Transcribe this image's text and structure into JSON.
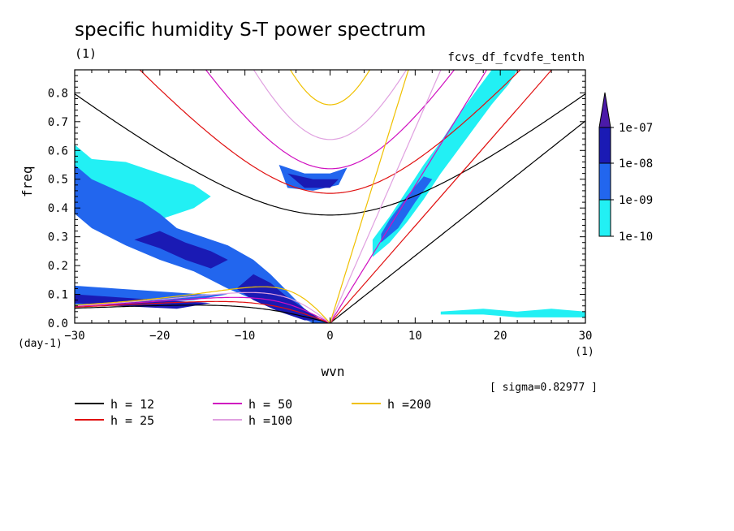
{
  "chart_data": {
    "type": "heatmap",
    "title": "specific humidity S-T power spectrum",
    "experiment": "fcvs_df_fcvdfe_tenth",
    "units_label": "(1)",
    "xlabel": "wvn",
    "ylabel": "freq",
    "x_unit": "(1)",
    "y_unit": "(day-1)",
    "xlim": [
      -30,
      30
    ],
    "ylim": [
      0,
      0.88
    ],
    "x_ticks": [
      -30,
      -20,
      -10,
      0,
      10,
      20,
      30
    ],
    "y_ticks": [
      0.0,
      0.1,
      0.2,
      0.3,
      0.4,
      0.5,
      0.6,
      0.7,
      0.8
    ],
    "annotation": "[ sigma=0.82977 ]",
    "colorbar": {
      "labels": [
        "1e-07",
        "1e-08",
        "1e-09",
        "1e-10"
      ],
      "colors": [
        "#4b1aa8",
        "#1a1ab4",
        "#2266ee",
        "#22f0f4"
      ]
    },
    "dispersion_curves": [
      {
        "label": "h = 12",
        "h": 12,
        "color": "#000000"
      },
      {
        "label": "h = 25",
        "h": 25,
        "color": "#e01010"
      },
      {
        "label": "h = 50",
        "h": 50,
        "color": "#d010c0"
      },
      {
        "label": "h =100",
        "h": 100,
        "color": "#e0a0e0"
      },
      {
        "label": "h =200",
        "h": 200,
        "color": "#f0c000"
      }
    ],
    "power_regions": [
      {
        "level": "1e-10",
        "points": [
          [
            -30,
            0.62
          ],
          [
            -28,
            0.57
          ],
          [
            -24,
            0.56
          ],
          [
            -21,
            0.53
          ],
          [
            -18,
            0.5
          ],
          [
            -16,
            0.48
          ],
          [
            -14,
            0.44
          ],
          [
            -16,
            0.4
          ],
          [
            -20,
            0.36
          ],
          [
            -24,
            0.37
          ],
          [
            -28,
            0.39
          ],
          [
            -30,
            0.42
          ]
        ]
      },
      {
        "level": "1e-09",
        "points": [
          [
            -30,
            0.55
          ],
          [
            -28,
            0.5
          ],
          [
            -25,
            0.46
          ],
          [
            -22,
            0.42
          ],
          [
            -20,
            0.38
          ],
          [
            -18,
            0.33
          ],
          [
            -15,
            0.3
          ],
          [
            -12,
            0.27
          ],
          [
            -9,
            0.22
          ],
          [
            -7,
            0.17
          ],
          [
            -5,
            0.11
          ],
          [
            -3,
            0.05
          ],
          [
            -1,
            0.01
          ],
          [
            0,
            0.0
          ],
          [
            -2,
            0.0
          ],
          [
            -5,
            0.04
          ],
          [
            -8,
            0.07
          ],
          [
            -12,
            0.12
          ],
          [
            -16,
            0.18
          ],
          [
            -20,
            0.22
          ],
          [
            -24,
            0.27
          ],
          [
            -28,
            0.33
          ],
          [
            -30,
            0.38
          ]
        ]
      },
      {
        "level": "1e-09",
        "points": [
          [
            -30,
            0.13
          ],
          [
            -25,
            0.12
          ],
          [
            -20,
            0.11
          ],
          [
            -15,
            0.1
          ],
          [
            -12,
            0.1
          ],
          [
            -16,
            0.08
          ],
          [
            -22,
            0.07
          ],
          [
            -28,
            0.07
          ],
          [
            -30,
            0.06
          ]
        ]
      },
      {
        "level": "1e-08",
        "points": [
          [
            -30,
            0.1
          ],
          [
            -25,
            0.09
          ],
          [
            -20,
            0.08
          ],
          [
            -14,
            0.07
          ],
          [
            -18,
            0.05
          ],
          [
            -25,
            0.06
          ],
          [
            -30,
            0.07
          ]
        ]
      },
      {
        "level": "1e-08",
        "points": [
          [
            -9,
            0.17
          ],
          [
            -7,
            0.14
          ],
          [
            -5,
            0.09
          ],
          [
            -3,
            0.05
          ],
          [
            -1,
            0.01
          ],
          [
            -3,
            0.01
          ],
          [
            -6,
            0.04
          ],
          [
            -9,
            0.08
          ],
          [
            -11,
            0.12
          ]
        ]
      },
      {
        "level": "1e-08",
        "points": [
          [
            -20,
            0.32
          ],
          [
            -17,
            0.28
          ],
          [
            -14,
            0.25
          ],
          [
            -12,
            0.22
          ],
          [
            -14,
            0.19
          ],
          [
            -17,
            0.22
          ],
          [
            -20,
            0.26
          ],
          [
            -23,
            0.29
          ]
        ]
      },
      {
        "level": "1e-09",
        "points": [
          [
            -6,
            0.55
          ],
          [
            -3,
            0.52
          ],
          [
            0,
            0.52
          ],
          [
            2,
            0.54
          ],
          [
            1,
            0.48
          ],
          [
            -2,
            0.46
          ],
          [
            -5,
            0.47
          ]
        ]
      },
      {
        "level": "1e-08",
        "points": [
          [
            -5,
            0.52
          ],
          [
            -2,
            0.5
          ],
          [
            1,
            0.5
          ],
          [
            0,
            0.47
          ],
          [
            -3,
            0.47
          ]
        ]
      },
      {
        "level": "1e-10",
        "points": [
          [
            5,
            0.23
          ],
          [
            7,
            0.28
          ],
          [
            9,
            0.35
          ],
          [
            11,
            0.43
          ],
          [
            13,
            0.52
          ],
          [
            15,
            0.6
          ],
          [
            17,
            0.68
          ],
          [
            19,
            0.76
          ],
          [
            21,
            0.83
          ],
          [
            22,
            0.88
          ],
          [
            19,
            0.88
          ],
          [
            17,
            0.8
          ],
          [
            15,
            0.72
          ],
          [
            13,
            0.63
          ],
          [
            11,
            0.55
          ],
          [
            9,
            0.46
          ],
          [
            7,
            0.37
          ],
          [
            5,
            0.29
          ]
        ]
      },
      {
        "level": "1e-09",
        "points": [
          [
            6,
            0.28
          ],
          [
            8,
            0.33
          ],
          [
            10,
            0.42
          ],
          [
            12,
            0.5
          ],
          [
            11,
            0.51
          ],
          [
            9,
            0.44
          ],
          [
            7,
            0.36
          ],
          [
            6,
            0.31
          ]
        ]
      },
      {
        "level": "1e-10",
        "points": [
          [
            13,
            0.03
          ],
          [
            18,
            0.03
          ],
          [
            22,
            0.02
          ],
          [
            26,
            0.02
          ],
          [
            30,
            0.02
          ],
          [
            30,
            0.04
          ],
          [
            26,
            0.05
          ],
          [
            22,
            0.04
          ],
          [
            18,
            0.05
          ],
          [
            13,
            0.04
          ]
        ]
      }
    ]
  }
}
